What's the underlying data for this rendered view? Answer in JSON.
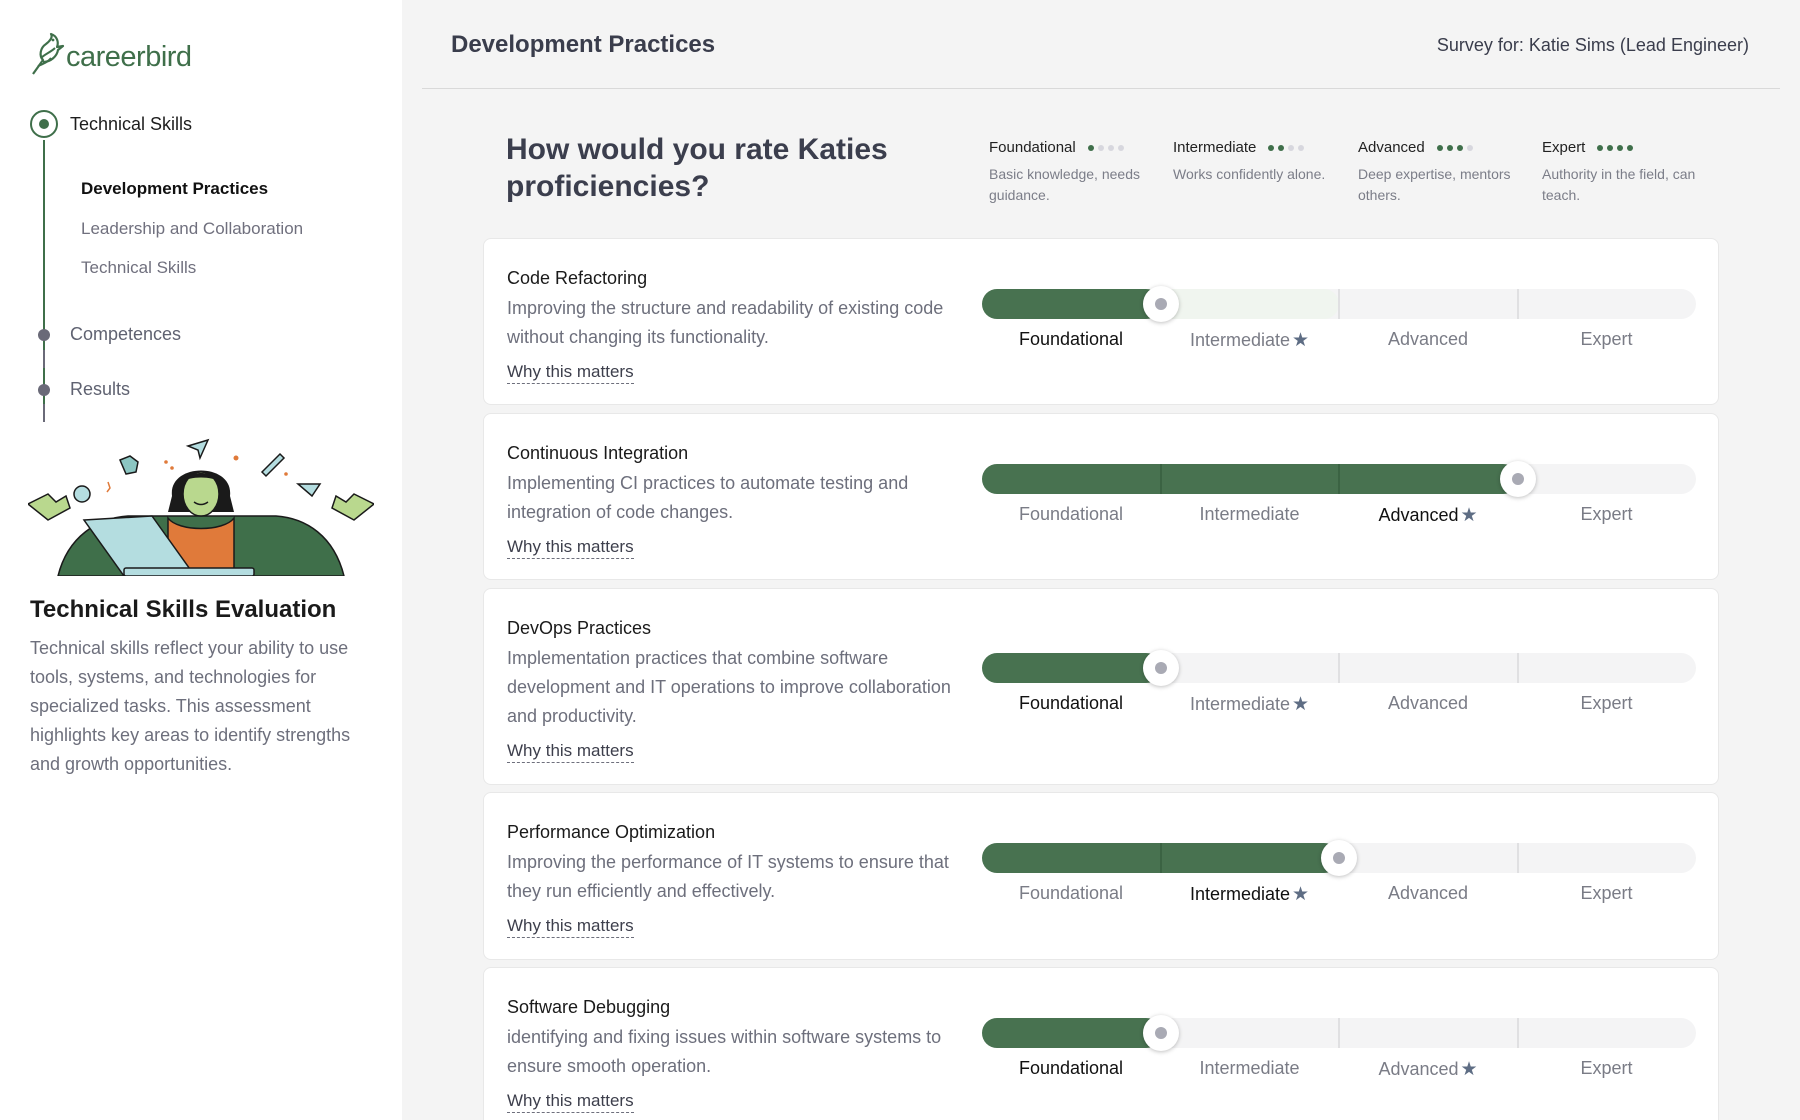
{
  "brand": {
    "name": "careerbird",
    "color": "#3f6f4a"
  },
  "sidebar": {
    "main_step": "Technical Skills",
    "substeps": [
      "Development Practices",
      "Leadership and Collaboration",
      "Technical Skills"
    ],
    "steps": [
      "Competences",
      "Results"
    ],
    "title": "Technical Skills Evaluation",
    "description": "Technical skills reflect your ability to use tools, systems, and technologies for specialized tasks. This assessment highlights key areas to identify strengths and growth opportunities."
  },
  "header": {
    "title": "Development Practices",
    "survey_for": "Survey for: Katie Sims (Lead Engineer)"
  },
  "question": "How would you rate Katies proficiencies?",
  "legend": [
    {
      "level": "Foundational",
      "dots": 1,
      "description": "Basic knowledge, needs guidance."
    },
    {
      "level": "Intermediate",
      "dots": 2,
      "description": "Works confidently alone."
    },
    {
      "level": "Advanced",
      "dots": 3,
      "description": "Deep expertise, mentors others."
    },
    {
      "level": "Expert",
      "dots": 4,
      "description": "Authority in the field, can teach."
    }
  ],
  "levels": [
    "Foundational",
    "Intermediate",
    "Advanced",
    "Expert"
  ],
  "why_label": "Why this matters",
  "skills": [
    {
      "name": "Code Refactoring",
      "description": "Improving the structure and readability of existing code without changing its functionality.",
      "rating": 1,
      "target": 2,
      "rating_label": "Foundational",
      "target_label": "Intermediate"
    },
    {
      "name": "Continuous Integration",
      "description": "Implementing CI practices to automate testing and integration of code changes.",
      "rating": 3,
      "target": 3,
      "rating_label": "Advanced",
      "target_label": "Advanced"
    },
    {
      "name": "DevOps Practices",
      "description": "Implementation practices that combine software development and IT operations to improve collaboration and productivity.",
      "rating": 1,
      "target": 2,
      "rating_label": "Foundational",
      "target_label": "Intermediate"
    },
    {
      "name": "Performance Optimization",
      "description": "Improving the performance of IT systems to ensure that they run efficiently and effectively.",
      "rating": 2,
      "target": 2,
      "rating_label": "Intermediate",
      "target_label": "Intermediate"
    },
    {
      "name": "Software Debugging",
      "description": "identifying and fixing issues within software systems to ensure smooth operation.",
      "rating": 1,
      "target": 3,
      "rating_label": "Foundational",
      "target_label": "Advanced"
    }
  ],
  "colors": {
    "fill": "#487250",
    "track": "#f4f4f5",
    "star": "#5e6d84"
  }
}
